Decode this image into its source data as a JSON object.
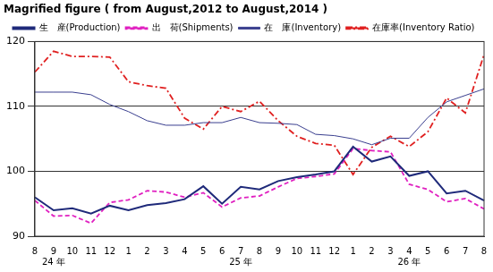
{
  "chart_data": {
    "type": "line",
    "title": "Magrified figure ( from August,2012 to August,2014 )",
    "categories": [
      "8",
      [
        "9",
        "24 年"
      ],
      "10",
      "11",
      "12",
      "1",
      "2",
      "3",
      "4",
      "5",
      "6",
      [
        "7",
        "25 年"
      ],
      "8",
      "9",
      "10",
      "11",
      "12",
      "1",
      "2",
      "3",
      [
        "4",
        "26 年"
      ],
      "5",
      "6",
      "7",
      "8"
    ],
    "series": [
      {
        "name": "生　産(Production)",
        "color": "#1f2a7a",
        "line_style": "solid",
        "marker": "none",
        "values": [
          96,
          94,
          94.3,
          93.5,
          94.7,
          94,
          94.8,
          95.1,
          95.7,
          97.7,
          95,
          97.6,
          97.2,
          98.5,
          99.1,
          99.5,
          100,
          103.8,
          101.5,
          102.3,
          99.3,
          100,
          96.6,
          97,
          95.5
        ]
      },
      {
        "name": "出　荷(Shipments)",
        "color": "#e020c0",
        "line_style": "dashed",
        "marker": "none",
        "values": [
          95.5,
          93.1,
          93.2,
          92,
          95.2,
          95.6,
          97,
          96.8,
          96,
          96.7,
          94.5,
          95.9,
          96.2,
          97.6,
          98.9,
          99.2,
          99.6,
          103.5,
          103.2,
          103,
          98,
          97.2,
          95.3,
          95.8,
          94.2
        ]
      },
      {
        "name": "在　庫(Inventory)",
        "color": "#3a3f8f",
        "line_style": "thin",
        "marker": "none",
        "values": [
          112.2,
          112.2,
          112.2,
          111.8,
          110.3,
          109.2,
          107.8,
          107.1,
          107.1,
          107.5,
          107.5,
          108.3,
          107.5,
          107.4,
          107.2,
          105.7,
          105.5,
          105,
          104.1,
          105.1,
          105.1,
          108.3,
          110.7,
          111.7,
          112.7
        ]
      },
      {
        "name": "在庫率(Inventory Ratio)",
        "color": "#e02020",
        "line_style": "dashdot",
        "marker": "none",
        "values": [
          115.3,
          118.5,
          117.7,
          117.7,
          117.6,
          113.8,
          113.2,
          112.8,
          108.2,
          106.5,
          110,
          109.2,
          110.8,
          107.8,
          105.4,
          104.3,
          104,
          99.5,
          103.7,
          105.4,
          103.8,
          106.1,
          111.3,
          109,
          118
        ]
      }
    ],
    "ylim": [
      90,
      120
    ],
    "yticks": [
      90,
      100,
      110,
      120
    ],
    "grid": true,
    "legend": "top"
  }
}
